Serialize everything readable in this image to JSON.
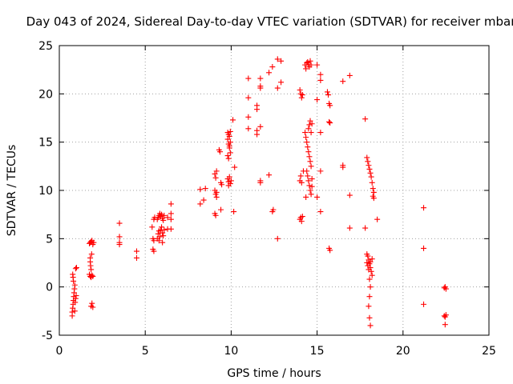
{
  "chart_data": {
    "type": "scatter",
    "title": "Day 043 of 2024, Sidereal Day-to-day VTEC variation (SDTVAR) for receiver mbar",
    "xlabel": "GPS time / hours",
    "ylabel": "SDTVAR / TECUs",
    "xlim": [
      0,
      25
    ],
    "ylim": [
      -5,
      25
    ],
    "x_ticks": [
      0,
      5,
      10,
      15,
      20,
      25
    ],
    "x_tick_labels": [
      "0",
      "5",
      "10",
      "15",
      "20",
      "25"
    ],
    "y_ticks": [
      -5,
      0,
      5,
      10,
      15,
      20,
      25
    ],
    "y_tick_labels": [
      "-5",
      "0",
      "5",
      "10",
      "15",
      "20",
      "25"
    ],
    "grid": true,
    "marker": "+",
    "color": "#ff0000",
    "series": [
      {
        "name": "SDTVAR",
        "points": [
          [
            0.75,
            -3.0
          ],
          [
            0.75,
            -2.6
          ],
          [
            0.78,
            -2.2
          ],
          [
            0.8,
            -1.8
          ],
          [
            0.82,
            -1.4
          ],
          [
            0.84,
            -1.0
          ],
          [
            0.86,
            -0.6
          ],
          [
            0.88,
            -0.2
          ],
          [
            0.9,
            0.2
          ],
          [
            0.82,
            0.6
          ],
          [
            0.8,
            1.0
          ],
          [
            0.78,
            1.3
          ],
          [
            0.9,
            -2.5
          ],
          [
            0.92,
            -1.6
          ],
          [
            0.95,
            -1.2
          ],
          [
            0.98,
            -0.9
          ],
          [
            1.0,
            2.0
          ],
          [
            0.95,
            1.9
          ],
          [
            1.75,
            4.5
          ],
          [
            1.8,
            4.6
          ],
          [
            1.85,
            4.7
          ],
          [
            1.9,
            4.8
          ],
          [
            1.95,
            4.4
          ],
          [
            2.0,
            4.6
          ],
          [
            1.8,
            3.0
          ],
          [
            1.8,
            2.6
          ],
          [
            1.82,
            2.2
          ],
          [
            1.85,
            1.8
          ],
          [
            1.75,
            1.3
          ],
          [
            1.8,
            1.1
          ],
          [
            1.85,
            1.0
          ],
          [
            1.9,
            1.2
          ],
          [
            1.95,
            1.1
          ],
          [
            1.9,
            -1.7
          ],
          [
            1.85,
            -2.0
          ],
          [
            1.95,
            -2.1
          ],
          [
            1.88,
            3.4
          ],
          [
            3.5,
            6.6
          ],
          [
            3.5,
            5.2
          ],
          [
            3.5,
            4.6
          ],
          [
            3.5,
            4.4
          ],
          [
            4.5,
            3.7
          ],
          [
            4.5,
            3.0
          ],
          [
            5.4,
            6.2
          ],
          [
            5.45,
            5.0
          ],
          [
            5.5,
            4.8
          ],
          [
            5.45,
            3.9
          ],
          [
            5.5,
            3.7
          ],
          [
            5.5,
            7.0
          ],
          [
            5.55,
            7.2
          ],
          [
            5.7,
            7.0
          ],
          [
            5.75,
            7.2
          ],
          [
            5.8,
            7.4
          ],
          [
            5.85,
            7.6
          ],
          [
            5.9,
            7.3
          ],
          [
            5.95,
            7.5
          ],
          [
            6.0,
            7.1
          ],
          [
            6.05,
            6.9
          ],
          [
            5.75,
            5.5
          ],
          [
            5.8,
            5.8
          ],
          [
            5.85,
            5.2
          ],
          [
            5.9,
            5.9
          ],
          [
            5.95,
            6.2
          ],
          [
            6.0,
            5.6
          ],
          [
            6.05,
            5.3
          ],
          [
            5.7,
            5.0
          ],
          [
            5.8,
            4.8
          ],
          [
            6.0,
            4.6
          ],
          [
            6.1,
            7.4
          ],
          [
            6.1,
            5.9
          ],
          [
            6.3,
            7.2
          ],
          [
            6.3,
            6.0
          ],
          [
            6.5,
            8.6
          ],
          [
            6.5,
            7.6
          ],
          [
            6.5,
            7.0
          ],
          [
            6.5,
            6.0
          ],
          [
            8.2,
            10.1
          ],
          [
            8.2,
            8.6
          ],
          [
            8.4,
            9.0
          ],
          [
            8.5,
            10.2
          ],
          [
            9.05,
            11.7
          ],
          [
            9.1,
            11.3
          ],
          [
            9.15,
            12.0
          ],
          [
            9.05,
            10.0
          ],
          [
            9.1,
            9.6
          ],
          [
            9.15,
            9.8
          ],
          [
            9.05,
            7.6
          ],
          [
            9.1,
            7.4
          ],
          [
            9.15,
            9.3
          ],
          [
            9.3,
            14.2
          ],
          [
            9.35,
            14.0
          ],
          [
            9.4,
            10.8
          ],
          [
            9.45,
            10.6
          ],
          [
            9.4,
            8.0
          ],
          [
            9.8,
            16.0
          ],
          [
            9.85,
            15.8
          ],
          [
            9.9,
            15.6
          ],
          [
            9.95,
            16.1
          ],
          [
            9.8,
            15.3
          ],
          [
            9.85,
            14.8
          ],
          [
            9.9,
            14.4
          ],
          [
            9.95,
            13.9
          ],
          [
            9.8,
            13.6
          ],
          [
            9.85,
            13.3
          ],
          [
            9.9,
            14.6
          ],
          [
            9.95,
            15.0
          ],
          [
            9.8,
            11.2
          ],
          [
            9.85,
            10.9
          ],
          [
            9.9,
            11.4
          ],
          [
            9.95,
            10.7
          ],
          [
            10.0,
            11.0
          ],
          [
            9.85,
            10.5
          ],
          [
            10.1,
            17.3
          ],
          [
            10.2,
            12.4
          ],
          [
            10.15,
            7.8
          ],
          [
            11.0,
            21.6
          ],
          [
            11.0,
            19.6
          ],
          [
            11.0,
            17.6
          ],
          [
            11.0,
            16.4
          ],
          [
            11.5,
            18.4
          ],
          [
            11.5,
            18.8
          ],
          [
            11.5,
            16.2
          ],
          [
            11.5,
            15.8
          ],
          [
            11.7,
            21.6
          ],
          [
            11.7,
            20.8
          ],
          [
            11.7,
            20.6
          ],
          [
            11.7,
            16.6
          ],
          [
            11.7,
            11.0
          ],
          [
            11.7,
            10.8
          ],
          [
            12.2,
            22.2
          ],
          [
            12.2,
            11.6
          ],
          [
            12.4,
            22.8
          ],
          [
            12.4,
            7.8
          ],
          [
            12.45,
            8.0
          ],
          [
            12.7,
            23.6
          ],
          [
            12.7,
            20.6
          ],
          [
            12.7,
            5.0
          ],
          [
            12.9,
            23.4
          ],
          [
            12.9,
            21.2
          ],
          [
            14.0,
            20.4
          ],
          [
            14.05,
            20.0
          ],
          [
            14.1,
            19.6
          ],
          [
            14.15,
            19.9
          ],
          [
            14.0,
            7.0
          ],
          [
            14.05,
            7.2
          ],
          [
            14.1,
            6.8
          ],
          [
            14.15,
            7.3
          ],
          [
            14.0,
            11.0
          ],
          [
            14.05,
            11.5
          ],
          [
            14.1,
            10.8
          ],
          [
            14.2,
            12.0
          ],
          [
            14.3,
            23.0
          ],
          [
            14.35,
            22.6
          ],
          [
            14.4,
            23.2
          ],
          [
            14.45,
            23.3
          ],
          [
            14.5,
            23.0
          ],
          [
            14.55,
            22.8
          ],
          [
            14.6,
            23.4
          ],
          [
            14.65,
            23.0
          ],
          [
            14.3,
            16.0
          ],
          [
            14.35,
            15.5
          ],
          [
            14.4,
            15.0
          ],
          [
            14.45,
            14.5
          ],
          [
            14.5,
            14.0
          ],
          [
            14.55,
            13.5
          ],
          [
            14.6,
            13.0
          ],
          [
            14.65,
            12.5
          ],
          [
            14.4,
            12.0
          ],
          [
            14.45,
            11.5
          ],
          [
            14.5,
            11.0
          ],
          [
            14.55,
            10.5
          ],
          [
            14.6,
            10.0
          ],
          [
            14.65,
            9.6
          ],
          [
            14.35,
            9.3
          ],
          [
            14.7,
            10.4
          ],
          [
            14.7,
            11.2
          ],
          [
            14.6,
            17.2
          ],
          [
            14.55,
            16.8
          ],
          [
            14.5,
            16.4
          ],
          [
            14.65,
            16.0
          ],
          [
            14.7,
            16.9
          ],
          [
            15.0,
            23.0
          ],
          [
            15.0,
            19.4
          ],
          [
            15.0,
            9.3
          ],
          [
            15.2,
            22.0
          ],
          [
            15.2,
            21.4
          ],
          [
            15.2,
            16.0
          ],
          [
            15.2,
            12.0
          ],
          [
            15.2,
            7.8
          ],
          [
            15.6,
            20.2
          ],
          [
            15.65,
            19.9
          ],
          [
            15.7,
            19.0
          ],
          [
            15.75,
            18.8
          ],
          [
            15.7,
            17.1
          ],
          [
            15.75,
            17.0
          ],
          [
            15.7,
            4.0
          ],
          [
            15.75,
            3.8
          ],
          [
            16.5,
            21.3
          ],
          [
            16.5,
            12.6
          ],
          [
            16.5,
            12.4
          ],
          [
            16.9,
            21.9
          ],
          [
            16.9,
            9.5
          ],
          [
            16.9,
            6.1
          ],
          [
            17.8,
            17.4
          ],
          [
            17.8,
            6.1
          ],
          [
            17.9,
            13.4
          ],
          [
            17.95,
            13.0
          ],
          [
            18.0,
            12.6
          ],
          [
            18.05,
            12.2
          ],
          [
            18.1,
            11.8
          ],
          [
            18.15,
            11.4
          ],
          [
            18.2,
            10.8
          ],
          [
            18.25,
            10.2
          ],
          [
            18.3,
            9.8
          ],
          [
            18.25,
            9.4
          ],
          [
            18.3,
            9.2
          ],
          [
            17.9,
            3.4
          ],
          [
            17.95,
            3.2
          ],
          [
            18.0,
            2.8
          ],
          [
            18.05,
            2.4
          ],
          [
            18.1,
            2.0
          ],
          [
            18.15,
            1.6
          ],
          [
            18.2,
            1.2
          ],
          [
            17.95,
            2.2
          ],
          [
            18.0,
            1.8
          ],
          [
            18.1,
            2.6
          ],
          [
            18.2,
            2.9
          ],
          [
            17.9,
            2.5
          ],
          [
            18.05,
            0.8
          ],
          [
            18.1,
            0.0
          ],
          [
            18.05,
            -1.0
          ],
          [
            18.0,
            -2.0
          ],
          [
            18.05,
            -3.2
          ],
          [
            18.1,
            -4.0
          ],
          [
            18.5,
            7.0
          ],
          [
            21.2,
            8.2
          ],
          [
            21.2,
            4.0
          ],
          [
            21.2,
            -1.8
          ],
          [
            22.4,
            -0.1
          ],
          [
            22.45,
            0.0
          ],
          [
            22.5,
            -0.2
          ],
          [
            22.4,
            -3.0
          ],
          [
            22.45,
            -3.1
          ],
          [
            22.5,
            -2.9
          ],
          [
            22.45,
            -3.9
          ]
        ]
      }
    ]
  }
}
